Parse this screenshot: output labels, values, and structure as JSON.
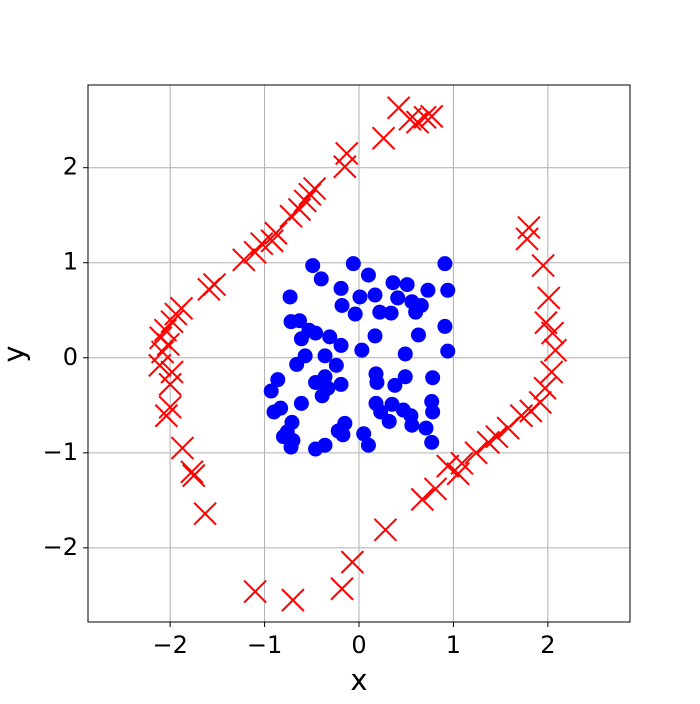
{
  "chart_data": {
    "type": "scatter",
    "x_label": "x",
    "y_label": "y",
    "xlim": [
      -2.87,
      2.87
    ],
    "ylim": [
      -2.78,
      2.87
    ],
    "xticks": [
      {
        "value": -2,
        "label": "−2"
      },
      {
        "value": -1,
        "label": "−1"
      },
      0,
      1,
      2
    ],
    "yticks": [
      {
        "value": -2,
        "label": "−2"
      },
      {
        "value": -1,
        "label": "−1"
      },
      0,
      1,
      2
    ],
    "grid": true,
    "series": [
      {
        "color": "#0000ff",
        "marker": "circle",
        "x": [
          -0.49,
          -0.06,
          0.91,
          0.1,
          -0.4,
          -0.19,
          0.36,
          0.51,
          0.17,
          0.01,
          -0.73,
          0.73,
          0.94,
          0.41,
          0.56,
          0.66,
          -0.18,
          0.22,
          -0.04,
          0.34,
          0.6,
          -0.72,
          -0.63,
          -0.53,
          0.91,
          -0.46,
          -0.31,
          0.17,
          0.63,
          -0.61,
          -0.19,
          0.94,
          0.03,
          -0.57,
          -0.36,
          0.49,
          -0.66,
          -0.24,
          0.18,
          0.78,
          0.49,
          -0.86,
          -0.36,
          -0.46,
          -0.19,
          0.19,
          0.38,
          -0.93,
          -0.33,
          -0.39,
          0.77,
          0.18,
          -0.61,
          0.35,
          -0.83,
          -0.9,
          0.47,
          0.23,
          0.78,
          0.55,
          0.32,
          -0.71,
          -0.15,
          0.56,
          -0.76,
          -0.22,
          0.71,
          -0.8,
          0.05,
          -0.17,
          -0.7,
          0.77,
          -0.36,
          0.1,
          -0.72,
          -0.46
        ],
        "values": [
          0.97,
          0.99,
          0.99,
          0.87,
          0.83,
          0.73,
          0.79,
          0.77,
          0.66,
          0.64,
          0.64,
          0.71,
          0.71,
          0.63,
          0.59,
          0.55,
          0.55,
          0.48,
          0.46,
          0.47,
          0.48,
          0.38,
          0.39,
          0.29,
          0.33,
          0.26,
          0.22,
          0.23,
          0.24,
          0.2,
          0.13,
          0.07,
          0.08,
          0.02,
          0.02,
          0.04,
          -0.07,
          -0.08,
          -0.17,
          -0.21,
          -0.2,
          -0.23,
          -0.2,
          -0.26,
          -0.28,
          -0.26,
          -0.29,
          -0.35,
          -0.32,
          -0.4,
          -0.46,
          -0.48,
          -0.48,
          -0.49,
          -0.53,
          -0.57,
          -0.55,
          -0.57,
          -0.57,
          -0.61,
          -0.67,
          -0.68,
          -0.69,
          -0.71,
          -0.78,
          -0.77,
          -0.74,
          -0.83,
          -0.8,
          -0.81,
          -0.87,
          -0.89,
          -0.92,
          -0.92,
          -0.94,
          -0.96
        ]
      },
      {
        "color": "#ff0000",
        "marker": "x",
        "x": [
          0.42,
          0.54,
          0.62,
          0.7,
          0.77,
          0.26,
          -0.13,
          -0.15,
          -0.47,
          -0.52,
          -0.57,
          -0.63,
          -0.72,
          -0.88,
          -0.92,
          -1.03,
          -1.1,
          -1.22,
          -1.53,
          -1.59,
          -1.88,
          -1.94,
          -1.98,
          -2.05,
          -2.1,
          -2.02,
          -2.08,
          -2.11,
          -1.98,
          -2.0,
          -2.0,
          -2.04,
          -1.87,
          -1.77,
          -1.75,
          -1.63,
          -1.1,
          -0.7,
          -0.18,
          -0.07,
          0.28,
          0.67,
          0.81,
          0.94,
          1.05,
          1.09,
          1.24,
          1.37,
          1.46,
          1.58,
          1.72,
          1.82,
          1.92,
          1.97,
          2.04,
          2.08,
          2.05,
          1.98,
          2.01,
          1.95,
          1.78,
          1.8
        ],
        "values": [
          2.63,
          2.51,
          2.48,
          2.53,
          2.54,
          2.31,
          2.15,
          2.01,
          1.78,
          1.72,
          1.65,
          1.56,
          1.49,
          1.31,
          1.23,
          1.2,
          1.11,
          1.03,
          0.77,
          0.72,
          0.52,
          0.46,
          0.38,
          0.29,
          0.21,
          0.14,
          0.06,
          -0.08,
          -0.15,
          -0.28,
          -0.52,
          -0.61,
          -0.95,
          -1.2,
          -1.24,
          -1.64,
          -2.46,
          -2.55,
          -2.43,
          -2.15,
          -1.81,
          -1.49,
          -1.38,
          -1.14,
          -1.22,
          -1.11,
          -1.0,
          -0.89,
          -0.83,
          -0.74,
          -0.61,
          -0.56,
          -0.47,
          -0.32,
          -0.15,
          0.08,
          0.26,
          0.37,
          0.63,
          0.97,
          1.25,
          1.37
        ]
      }
    ]
  }
}
